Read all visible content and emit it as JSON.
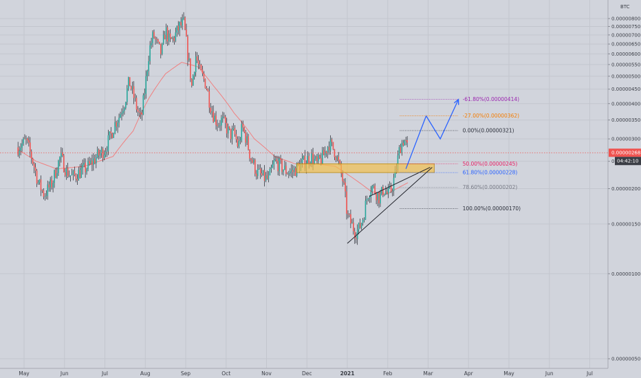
{
  "chart_data": {
    "type": "candlestick",
    "currency": "BTC",
    "y_scale": "log",
    "ylim": [
      5e-07,
      8e-06
    ],
    "y_ticks": [
      "0.00000800",
      "0.00000750",
      "0.00000700",
      "0.00000650",
      "0.00000600",
      "0.00000550",
      "0.00000500",
      "0.00000450",
      "0.00000400",
      "0.00000350",
      "0.00000300",
      "0.00000250",
      "0.00000200",
      "0.00000150",
      "0.00000100",
      "0.00000050"
    ],
    "x_ticks": [
      "May",
      "Jun",
      "Jul",
      "Aug",
      "Sep",
      "Oct",
      "Nov",
      "Dec",
      "2021",
      "Feb",
      "Mar",
      "Apr",
      "May",
      "Jun",
      "Jul"
    ],
    "x_tick_months": [
      0,
      1,
      2,
      3,
      4,
      5,
      6,
      7,
      8,
      9,
      10,
      11,
      12,
      13,
      14
    ],
    "xlim_months": [
      -0.15,
      14.55
    ],
    "price_path": [
      [
        -0.15,
        2.8
      ],
      [
        0.05,
        2.95
      ],
      [
        0.2,
        2.55
      ],
      [
        0.35,
        2.1
      ],
      [
        0.5,
        1.9
      ],
      [
        0.7,
        2.1
      ],
      [
        0.9,
        2.6
      ],
      [
        1.05,
        2.3
      ],
      [
        1.2,
        2.2
      ],
      [
        1.4,
        2.3
      ],
      [
        1.6,
        2.4
      ],
      [
        1.8,
        2.6
      ],
      [
        2.0,
        2.75
      ],
      [
        2.15,
        3.1
      ],
      [
        2.25,
        3.4
      ],
      [
        2.35,
        3.6
      ],
      [
        2.5,
        4.1
      ],
      [
        2.6,
        4.8
      ],
      [
        2.7,
        4.3
      ],
      [
        2.8,
        3.8
      ],
      [
        2.9,
        3.5
      ],
      [
        3.0,
        4.6
      ],
      [
        3.1,
        6.2
      ],
      [
        3.2,
        7.0
      ],
      [
        3.3,
        6.4
      ],
      [
        3.4,
        6.0
      ],
      [
        3.5,
        7.3
      ],
      [
        3.6,
        6.6
      ],
      [
        3.7,
        6.8
      ],
      [
        3.85,
        7.5
      ],
      [
        3.95,
        7.7
      ],
      [
        4.05,
        6.0
      ],
      [
        4.15,
        4.6
      ],
      [
        4.25,
        5.9
      ],
      [
        4.35,
        5.2
      ],
      [
        4.5,
        4.7
      ],
      [
        4.6,
        4.0
      ],
      [
        4.7,
        3.6
      ],
      [
        4.8,
        3.4
      ],
      [
        4.9,
        3.5
      ],
      [
        5.0,
        3.3
      ],
      [
        5.1,
        3.1
      ],
      [
        5.2,
        3.15
      ],
      [
        5.3,
        2.8
      ],
      [
        5.4,
        3.3
      ],
      [
        5.5,
        3.0
      ],
      [
        5.6,
        2.6
      ],
      [
        5.75,
        2.3
      ],
      [
        5.9,
        2.2
      ],
      [
        6.05,
        2.15
      ],
      [
        6.2,
        2.5
      ],
      [
        6.35,
        2.4
      ],
      [
        6.5,
        2.3
      ],
      [
        6.65,
        2.3
      ],
      [
        6.8,
        2.4
      ],
      [
        6.95,
        2.5
      ],
      [
        7.1,
        2.6
      ],
      [
        7.25,
        2.45
      ],
      [
        7.4,
        2.6
      ],
      [
        7.55,
        2.9
      ],
      [
        7.7,
        2.7
      ],
      [
        7.8,
        2.4
      ],
      [
        7.9,
        2.1
      ],
      [
        8.0,
        1.6
      ],
      [
        8.1,
        1.5
      ],
      [
        8.2,
        1.4
      ],
      [
        8.3,
        1.45
      ],
      [
        8.4,
        1.6
      ],
      [
        8.5,
        1.9
      ],
      [
        8.6,
        2.05
      ],
      [
        8.7,
        1.95
      ],
      [
        8.8,
        1.85
      ],
      [
        8.9,
        2.0
      ],
      [
        9.0,
        1.9
      ],
      [
        9.1,
        2.0
      ],
      [
        9.2,
        2.3
      ],
      [
        9.3,
        2.8
      ],
      [
        9.4,
        3.0
      ],
      [
        9.5,
        2.75
      ]
    ],
    "moving_average": [
      [
        -0.15,
        2.75
      ],
      [
        0.3,
        2.5
      ],
      [
        0.8,
        2.35
      ],
      [
        1.5,
        2.4
      ],
      [
        2.2,
        2.6
      ],
      [
        2.7,
        3.2
      ],
      [
        3.1,
        4.2
      ],
      [
        3.5,
        5.1
      ],
      [
        3.9,
        5.6
      ],
      [
        4.3,
        5.4
      ],
      [
        4.7,
        4.6
      ],
      [
        5.2,
        3.7
      ],
      [
        5.7,
        3.0
      ],
      [
        6.2,
        2.6
      ],
      [
        6.7,
        2.45
      ],
      [
        7.2,
        2.45
      ],
      [
        7.7,
        2.4
      ],
      [
        8.2,
        2.15
      ],
      [
        8.6,
        1.95
      ],
      [
        9.0,
        1.92
      ],
      [
        9.5,
        2.1
      ]
    ],
    "current_price": 2.68e-06,
    "current_price_label": "0.00000268",
    "countdown_label": "04:42:10",
    "support_zone": {
      "from_month": 6.75,
      "to_month": 10.15,
      "y_low": 2.28e-06,
      "y_high": 2.45e-06
    },
    "triangle": {
      "lower_trendline": [
        [
          8.0,
          1.28e-06
        ],
        [
          10.1,
          2.38e-06
        ]
      ],
      "upper_line": [
        [
          8.55,
          1.88e-06
        ],
        [
          10.05,
          2.38e-06
        ]
      ]
    },
    "projection": [
      [
        9.45,
        2.35e-06
      ],
      [
        9.95,
        3.62e-06
      ],
      [
        10.3,
        3e-06
      ],
      [
        10.75,
        4.14e-06
      ]
    ],
    "fibonacci": {
      "x_start_month": 9.3,
      "x_end_month": 10.75,
      "levels": [
        {
          "label": "-61.80%(0.00000414)",
          "value": 4.14e-06,
          "color": "#9c27b0"
        },
        {
          "label": "-27.00%(0.00000362)",
          "value": 3.62e-06,
          "color": "#f57c00"
        },
        {
          "label": "0.00%(0.00000321)",
          "value": 3.21e-06,
          "color": "#2a2e39"
        },
        {
          "label": "50.00%(0.00000245)",
          "value": 2.45e-06,
          "color": "#e91e63"
        },
        {
          "label": "61.80%(0.00000228)",
          "value": 2.28e-06,
          "color": "#2962ff"
        },
        {
          "label": "78.60%(0.00000202)",
          "value": 2.02e-06,
          "color": "#787b86"
        },
        {
          "label": "100.00%(0.00000170)",
          "value": 1.7e-06,
          "color": "#2a2e39"
        }
      ]
    },
    "colors": {
      "background": "#d1d4dc",
      "grid": "#c3c6ce",
      "up": "#26a69a",
      "down": "#ef5350",
      "ma": "#f08080",
      "projection": "#2962ff",
      "zone_fill": "#f2c14e",
      "zone_stroke": "#b8860b",
      "price_tag": "#ef5350",
      "countdown_tag": "#3a3d45"
    }
  }
}
